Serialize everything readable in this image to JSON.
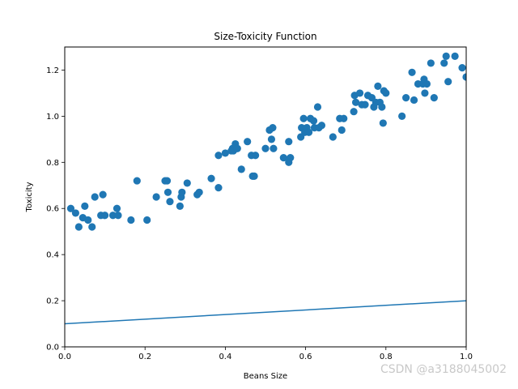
{
  "chart_data": {
    "type": "scatter",
    "title": "Size-Toxicity Function",
    "xlabel": "Beans Size",
    "ylabel": "Toxicity",
    "xlim": [
      0,
      1
    ],
    "ylim": [
      0,
      1.3
    ],
    "xticks": [
      0.0,
      0.2,
      0.4,
      0.6,
      0.8,
      1.0
    ],
    "xtick_labels": [
      "0.0",
      "0.2",
      "0.4",
      "0.6",
      "0.8",
      "1.0"
    ],
    "yticks": [
      0.0,
      0.2,
      0.4,
      0.6,
      0.8,
      1.0,
      1.2
    ],
    "ytick_labels": [
      "0.0",
      "0.2",
      "0.4",
      "0.6",
      "0.8",
      "1.0",
      "1.2"
    ],
    "grid": false,
    "color": "#1f77b4",
    "points": [
      [
        0.015,
        0.6
      ],
      [
        0.027,
        0.58
      ],
      [
        0.035,
        0.52
      ],
      [
        0.045,
        0.56
      ],
      [
        0.05,
        0.61
      ],
      [
        0.058,
        0.55
      ],
      [
        0.068,
        0.52
      ],
      [
        0.075,
        0.65
      ],
      [
        0.09,
        0.57
      ],
      [
        0.095,
        0.66
      ],
      [
        0.1,
        0.57
      ],
      [
        0.12,
        0.57
      ],
      [
        0.13,
        0.6
      ],
      [
        0.133,
        0.57
      ],
      [
        0.165,
        0.55
      ],
      [
        0.18,
        0.72
      ],
      [
        0.205,
        0.55
      ],
      [
        0.228,
        0.65
      ],
      [
        0.25,
        0.72
      ],
      [
        0.255,
        0.72
      ],
      [
        0.257,
        0.67
      ],
      [
        0.262,
        0.63
      ],
      [
        0.287,
        0.61
      ],
      [
        0.29,
        0.65
      ],
      [
        0.292,
        0.67
      ],
      [
        0.305,
        0.71
      ],
      [
        0.33,
        0.66
      ],
      [
        0.335,
        0.67
      ],
      [
        0.365,
        0.73
      ],
      [
        0.383,
        0.83
      ],
      [
        0.383,
        0.69
      ],
      [
        0.4,
        0.84
      ],
      [
        0.415,
        0.85
      ],
      [
        0.418,
        0.86
      ],
      [
        0.42,
        0.85
      ],
      [
        0.425,
        0.88
      ],
      [
        0.43,
        0.86
      ],
      [
        0.44,
        0.77
      ],
      [
        0.455,
        0.89
      ],
      [
        0.465,
        0.83
      ],
      [
        0.468,
        0.74
      ],
      [
        0.472,
        0.74
      ],
      [
        0.475,
        0.83
      ],
      [
        0.5,
        0.86
      ],
      [
        0.51,
        0.94
      ],
      [
        0.515,
        0.9
      ],
      [
        0.518,
        0.95
      ],
      [
        0.52,
        0.86
      ],
      [
        0.545,
        0.82
      ],
      [
        0.558,
        0.8
      ],
      [
        0.558,
        0.89
      ],
      [
        0.562,
        0.82
      ],
      [
        0.588,
        0.91
      ],
      [
        0.59,
        0.95
      ],
      [
        0.595,
        0.99
      ],
      [
        0.598,
        0.93
      ],
      [
        0.603,
        0.95
      ],
      [
        0.608,
        0.93
      ],
      [
        0.612,
        0.99
      ],
      [
        0.62,
        0.98
      ],
      [
        0.622,
        0.95
      ],
      [
        0.63,
        1.04
      ],
      [
        0.633,
        0.95
      ],
      [
        0.64,
        0.96
      ],
      [
        0.668,
        0.91
      ],
      [
        0.685,
        0.99
      ],
      [
        0.69,
        0.94
      ],
      [
        0.695,
        0.99
      ],
      [
        0.72,
        1.02
      ],
      [
        0.722,
        1.09
      ],
      [
        0.725,
        1.06
      ],
      [
        0.735,
        1.1
      ],
      [
        0.74,
        1.05
      ],
      [
        0.748,
        1.05
      ],
      [
        0.755,
        1.09
      ],
      [
        0.765,
        1.08
      ],
      [
        0.77,
        1.04
      ],
      [
        0.775,
        1.06
      ],
      [
        0.78,
        1.13
      ],
      [
        0.785,
        1.06
      ],
      [
        0.79,
        1.04
      ],
      [
        0.793,
        0.97
      ],
      [
        0.795,
        1.11
      ],
      [
        0.8,
        1.1
      ],
      [
        0.84,
        1.0
      ],
      [
        0.85,
        1.08
      ],
      [
        0.865,
        1.19
      ],
      [
        0.87,
        1.07
      ],
      [
        0.88,
        1.14
      ],
      [
        0.892,
        1.14
      ],
      [
        0.895,
        1.16
      ],
      [
        0.897,
        1.1
      ],
      [
        0.902,
        1.14
      ],
      [
        0.912,
        1.23
      ],
      [
        0.92,
        1.08
      ],
      [
        0.945,
        1.23
      ],
      [
        0.95,
        1.26
      ],
      [
        0.955,
        1.15
      ],
      [
        0.972,
        1.26
      ],
      [
        0.99,
        1.21
      ],
      [
        1.0,
        1.17
      ]
    ],
    "line": {
      "x": [
        0,
        1
      ],
      "y": [
        0.1,
        0.2
      ]
    }
  },
  "watermark": "CSDN @a3188045002"
}
